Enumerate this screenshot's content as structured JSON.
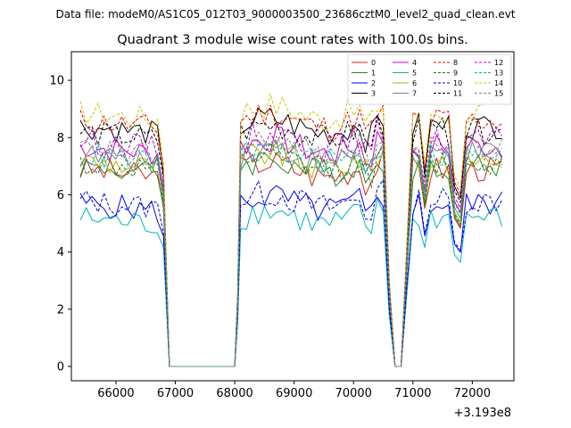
{
  "figure": {
    "suptitle": "Data file: modeM0/AS1C05_012T03_9000003500_23686cztM0_level2_quad_clean.evt"
  },
  "chart_data": {
    "type": "line",
    "title": "Quadrant 3 module wise count rates with 100.0s bins.",
    "xlabel": "",
    "ylabel": "",
    "x_offset_label": "+3.193e8",
    "xlim": [
      65250,
      72700
    ],
    "ylim": [
      -0.5,
      11.0
    ],
    "x_ticks": [
      66000,
      67000,
      68000,
      69000,
      70000,
      71000,
      72000
    ],
    "x_tick_labels": [
      "66000",
      "67000",
      "68000",
      "69000",
      "70000",
      "71000",
      "72000"
    ],
    "y_ticks": [
      0,
      2,
      4,
      6,
      8,
      10
    ],
    "y_tick_labels": [
      "0",
      "2",
      "4",
      "6",
      "8",
      "10"
    ],
    "grid": false,
    "legend": {
      "placement": "top-right",
      "columns": 4
    },
    "x_segments": [
      [
        65400,
        66800
      ],
      [
        66900,
        68000
      ],
      [
        68100,
        70500
      ],
      [
        70600,
        70800
      ],
      [
        70900,
        71700
      ],
      [
        71800,
        72500
      ]
    ],
    "profiles": {
      "pre": [
        65400,
        65500,
        65600,
        65700,
        65800,
        65900,
        66000,
        66100,
        66200,
        66300,
        66400,
        66500,
        66600,
        66700,
        66800
      ],
      "mid": [
        68100,
        68200,
        68300,
        68400,
        68500,
        68600,
        68700,
        68800,
        68900,
        69000,
        69100,
        69200,
        69300,
        69400,
        69500,
        69600,
        69700,
        69800,
        69900,
        70000,
        70100,
        70200,
        70300,
        70400,
        70500
      ]
    },
    "series": [
      {
        "name": "0",
        "color": "#d62020",
        "dash": "solid",
        "level": 6.9
      },
      {
        "name": "1",
        "color": "#228b22",
        "dash": "solid",
        "level": 7.0
      },
      {
        "name": "2",
        "color": "#0000ee",
        "dash": "solid",
        "level": 5.7
      },
      {
        "name": "3",
        "color": "#000000",
        "dash": "solid",
        "level": 8.4
      },
      {
        "name": "4",
        "color": "#c000c0",
        "dash": "solid",
        "level": 7.7
      },
      {
        "name": "5",
        "color": "#00b5b5",
        "dash": "solid",
        "level": 5.2
      },
      {
        "name": "6",
        "color": "#b5b500",
        "dash": "solid",
        "level": 7.2
      },
      {
        "name": "7",
        "color": "#808080",
        "dash": "solid",
        "level": 7.4
      },
      {
        "name": "8",
        "color": "#ee0000",
        "dash": "dashed",
        "level": 8.6
      },
      {
        "name": "9",
        "color": "#1a7a1a",
        "dash": "dashed",
        "level": 7.1
      },
      {
        "name": "10",
        "color": "#0000cc",
        "dash": "dashed",
        "level": 5.8
      },
      {
        "name": "11",
        "color": "#000000",
        "dash": "dashed",
        "level": 8.2
      },
      {
        "name": "12",
        "color": "#c000c0",
        "dash": "dashed",
        "level": 7.9
      },
      {
        "name": "13",
        "color": "#00b5b5",
        "dash": "dashed",
        "level": 7.4
      },
      {
        "name": "14",
        "color": "#c8c800",
        "dash": "dashed",
        "level": 8.9
      },
      {
        "name": "15",
        "color": "#808080",
        "dash": "dashed",
        "level": 7.6
      }
    ]
  }
}
